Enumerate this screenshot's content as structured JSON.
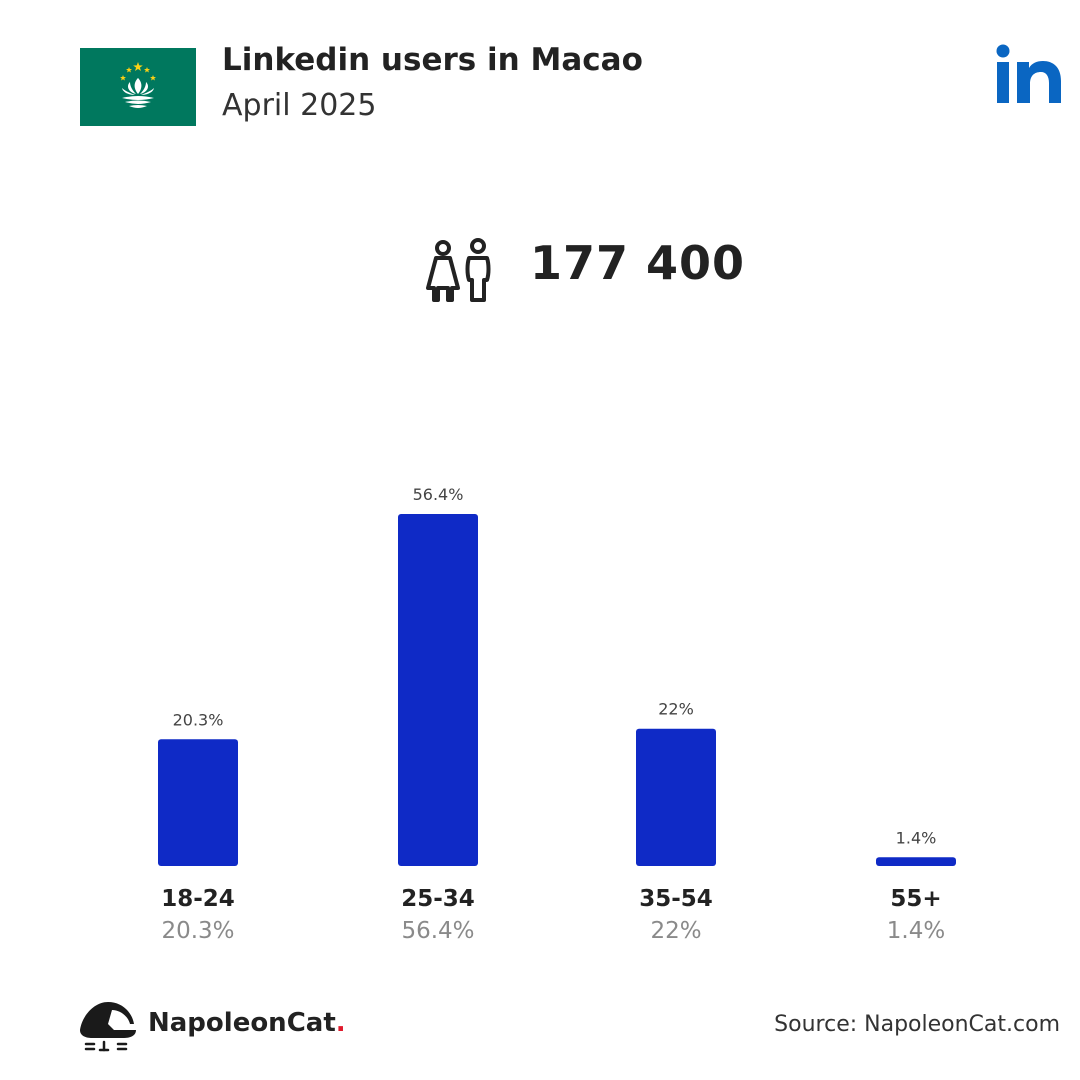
{
  "header": {
    "title": "Linkedin users in Macao",
    "subtitle": "April 2025"
  },
  "flag": {
    "country": "Macao",
    "colors": {
      "green": "#00785E",
      "white": "#FFFFFF",
      "yellow": "#FBD116"
    }
  },
  "brand_logo": {
    "icon": "linkedin-icon",
    "color": "#0A66C2"
  },
  "total": {
    "icon": "users-icon",
    "value": "177 400"
  },
  "chart_data": {
    "type": "bar",
    "categories": [
      "18-24",
      "25-34",
      "35-54",
      "55+"
    ],
    "values": [
      20.3,
      56.4,
      22,
      1.4
    ],
    "value_labels": [
      "20.3%",
      "56.4%",
      "22%",
      "1.4%"
    ],
    "title": "",
    "xlabel": "",
    "ylabel": "",
    "ylim": [
      0,
      56.4
    ],
    "grid": false,
    "bar_color": "#0F2AC6"
  },
  "footer": {
    "brand_name": "NapoleonCat",
    "brand_dot": ".",
    "source": "Source: NapoleonCat.com"
  }
}
